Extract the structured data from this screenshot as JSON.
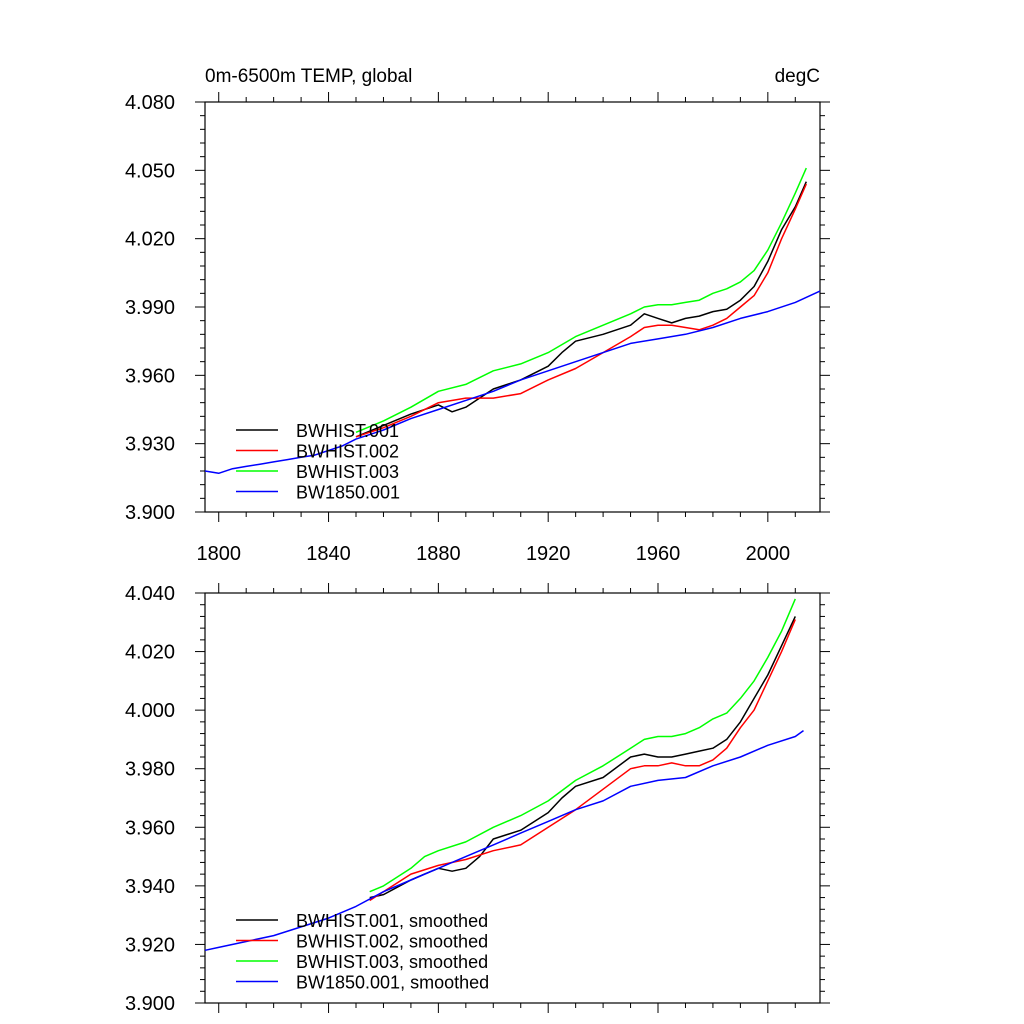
{
  "chart_data": [
    {
      "type": "line",
      "title": "0m-6500m TEMP, global",
      "units": "degC",
      "xlabel": "",
      "ylabel": "",
      "xlim": [
        1795,
        2019
      ],
      "ylim": [
        3.9,
        4.08
      ],
      "x_ticks": [
        1800,
        1840,
        1880,
        1920,
        1960,
        2000
      ],
      "x_tick_labels": [
        "1800",
        "1840",
        "1880",
        "1920",
        "1960",
        "2000"
      ],
      "y_ticks": [
        3.9,
        3.93,
        3.96,
        3.99,
        4.02,
        4.05,
        4.08
      ],
      "y_tick_labels": [
        "3.900",
        "3.930",
        "3.960",
        "3.990",
        "4.020",
        "4.050",
        "4.080"
      ],
      "legend_position": "bottom-left",
      "series": [
        {
          "name": "BWHIST.001",
          "color": "#000000",
          "x": [
            1850,
            1860,
            1870,
            1880,
            1885,
            1890,
            1900,
            1910,
            1920,
            1925,
            1930,
            1940,
            1950,
            1955,
            1960,
            1965,
            1970,
            1975,
            1980,
            1985,
            1990,
            1995,
            2000,
            2005,
            2010,
            2014
          ],
          "y": [
            3.933,
            3.938,
            3.943,
            3.947,
            3.944,
            3.946,
            3.954,
            3.958,
            3.964,
            3.97,
            3.975,
            3.978,
            3.982,
            3.987,
            3.985,
            3.983,
            3.985,
            3.986,
            3.988,
            3.989,
            3.993,
            3.999,
            4.01,
            4.024,
            4.034,
            4.045
          ]
        },
        {
          "name": "BWHIST.002",
          "color": "#ff0000",
          "x": [
            1850,
            1860,
            1870,
            1880,
            1890,
            1900,
            1910,
            1920,
            1930,
            1940,
            1950,
            1955,
            1960,
            1965,
            1970,
            1975,
            1980,
            1985,
            1990,
            1995,
            2000,
            2005,
            2010,
            2014
          ],
          "y": [
            3.933,
            3.937,
            3.942,
            3.948,
            3.95,
            3.95,
            3.952,
            3.958,
            3.963,
            3.97,
            3.977,
            3.981,
            3.982,
            3.982,
            3.981,
            3.98,
            3.982,
            3.985,
            3.99,
            3.995,
            4.005,
            4.02,
            4.033,
            4.044
          ]
        },
        {
          "name": "BWHIST.003",
          "color": "#00ff00",
          "x": [
            1850,
            1860,
            1870,
            1880,
            1890,
            1900,
            1910,
            1920,
            1930,
            1940,
            1950,
            1955,
            1960,
            1965,
            1970,
            1975,
            1980,
            1985,
            1990,
            1995,
            2000,
            2005,
            2010,
            2014
          ],
          "y": [
            3.935,
            3.94,
            3.946,
            3.953,
            3.956,
            3.962,
            3.965,
            3.97,
            3.977,
            3.982,
            3.987,
            3.99,
            3.991,
            3.991,
            3.992,
            3.993,
            3.996,
            3.998,
            4.001,
            4.006,
            4.015,
            4.027,
            4.04,
            4.051
          ]
        },
        {
          "name": "BW1850.001",
          "color": "#0000ff",
          "x": [
            1795,
            1800,
            1805,
            1810,
            1815,
            1820,
            1825,
            1830,
            1835,
            1840,
            1845,
            1850,
            1860,
            1870,
            1880,
            1890,
            1900,
            1910,
            1920,
            1930,
            1940,
            1950,
            1960,
            1970,
            1980,
            1990,
            2000,
            2010,
            2019
          ],
          "y": [
            3.918,
            3.917,
            3.919,
            3.92,
            3.921,
            3.922,
            3.923,
            3.924,
            3.925,
            3.927,
            3.929,
            3.932,
            3.936,
            3.941,
            3.945,
            3.949,
            3.953,
            3.958,
            3.962,
            3.966,
            3.97,
            3.974,
            3.976,
            3.978,
            3.981,
            3.985,
            3.988,
            3.992,
            3.997
          ]
        }
      ]
    },
    {
      "type": "line",
      "title": "",
      "xlabel": "",
      "ylabel": "",
      "xlim": [
        1795,
        2019
      ],
      "ylim": [
        3.9,
        4.04
      ],
      "x_ticks": [
        1800,
        1840,
        1880,
        1920,
        1960,
        2000
      ],
      "x_tick_labels": [],
      "y_ticks": [
        3.9,
        3.92,
        3.94,
        3.96,
        3.98,
        4.0,
        4.02,
        4.04
      ],
      "y_tick_labels": [
        "3.900",
        "3.920",
        "3.940",
        "3.960",
        "3.980",
        "4.000",
        "4.020",
        "4.040"
      ],
      "legend_position": "bottom-left",
      "series": [
        {
          "name": "BWHIST.001, smoothed",
          "color": "#000000",
          "x": [
            1855,
            1860,
            1870,
            1875,
            1880,
            1885,
            1890,
            1895,
            1900,
            1910,
            1920,
            1925,
            1930,
            1940,
            1950,
            1955,
            1960,
            1965,
            1970,
            1975,
            1980,
            1985,
            1990,
            1995,
            2000,
            2005,
            2010
          ],
          "y": [
            3.936,
            3.937,
            3.942,
            3.944,
            3.946,
            3.945,
            3.946,
            3.95,
            3.956,
            3.959,
            3.965,
            3.97,
            3.974,
            3.977,
            3.984,
            3.985,
            3.984,
            3.984,
            3.985,
            3.986,
            3.987,
            3.99,
            3.996,
            4.004,
            4.012,
            4.022,
            4.032
          ]
        },
        {
          "name": "BWHIST.002, smoothed",
          "color": "#ff0000",
          "x": [
            1855,
            1860,
            1870,
            1880,
            1890,
            1900,
            1910,
            1920,
            1930,
            1940,
            1950,
            1955,
            1960,
            1965,
            1970,
            1975,
            1980,
            1985,
            1990,
            1995,
            2000,
            2005,
            2010
          ],
          "y": [
            3.935,
            3.938,
            3.944,
            3.947,
            3.949,
            3.952,
            3.954,
            3.96,
            3.966,
            3.973,
            3.98,
            3.981,
            3.981,
            3.982,
            3.981,
            3.981,
            3.983,
            3.987,
            3.994,
            4.0,
            4.01,
            4.02,
            4.031
          ]
        },
        {
          "name": "BWHIST.003, smoothed",
          "color": "#00ff00",
          "x": [
            1855,
            1860,
            1870,
            1875,
            1880,
            1890,
            1900,
            1910,
            1920,
            1930,
            1940,
            1950,
            1955,
            1960,
            1965,
            1970,
            1975,
            1980,
            1985,
            1990,
            1995,
            2000,
            2005,
            2010
          ],
          "y": [
            3.938,
            3.94,
            3.946,
            3.95,
            3.952,
            3.955,
            3.96,
            3.964,
            3.969,
            3.976,
            3.981,
            3.987,
            3.99,
            3.991,
            3.991,
            3.992,
            3.994,
            3.997,
            3.999,
            4.004,
            4.01,
            4.018,
            4.027,
            4.038
          ]
        },
        {
          "name": "BW1850.001, smoothed",
          "color": "#0000ff",
          "x": [
            1795,
            1800,
            1810,
            1820,
            1830,
            1840,
            1850,
            1860,
            1870,
            1880,
            1890,
            1900,
            1910,
            1920,
            1930,
            1940,
            1950,
            1960,
            1970,
            1980,
            1990,
            2000,
            2010,
            2013
          ],
          "y": [
            3.918,
            3.919,
            3.921,
            3.923,
            3.926,
            3.929,
            3.933,
            3.938,
            3.942,
            3.946,
            3.95,
            3.954,
            3.958,
            3.962,
            3.966,
            3.969,
            3.974,
            3.976,
            3.977,
            3.981,
            3.984,
            3.988,
            3.991,
            3.993
          ]
        }
      ]
    }
  ]
}
